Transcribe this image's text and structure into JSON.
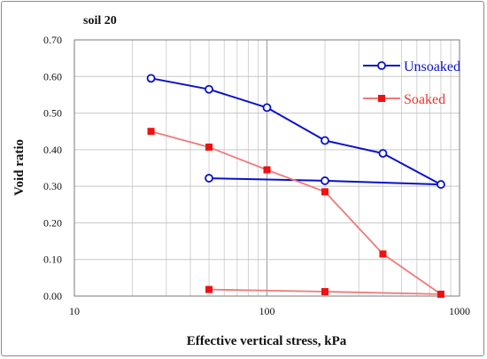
{
  "chart_data": {
    "type": "line",
    "title": "soil 20",
    "xlabel": "Effective vertical stress, kPa",
    "ylabel": "Void ratio",
    "xscale": "log",
    "xlim": [
      10,
      1000
    ],
    "ylim": [
      0,
      0.7
    ],
    "x_ticks": [
      "10",
      "100",
      "1000"
    ],
    "y_ticks": [
      "0.00",
      "0.10",
      "0.20",
      "0.30",
      "0.40",
      "0.50",
      "0.60",
      "0.70"
    ],
    "grid": true,
    "legend_position": "top-right",
    "series": [
      {
        "name": "Unsoaked",
        "color": "#0a12c8",
        "marker": "open-circle",
        "x": [
          25,
          50,
          100,
          200,
          400,
          800,
          200,
          50
        ],
        "y": [
          0.595,
          0.565,
          0.515,
          0.425,
          0.39,
          0.305,
          0.315,
          0.322
        ]
      },
      {
        "name": "Soaked",
        "color": "#f07a7a",
        "marker_color": "#ee1111",
        "marker": "filled-square",
        "x": [
          25,
          50,
          100,
          200,
          400,
          800,
          200,
          50
        ],
        "y": [
          0.45,
          0.407,
          0.345,
          0.285,
          0.115,
          0.005,
          0.012,
          0.018
        ]
      }
    ]
  }
}
